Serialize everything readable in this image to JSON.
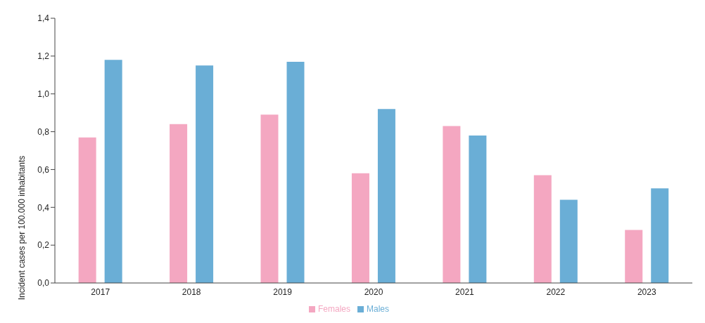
{
  "chart_data": {
    "type": "bar",
    "ylabel": "Incident cases per 100.000 inhabitants",
    "categories": [
      "2017",
      "2018",
      "2019",
      "2020",
      "2021",
      "2022",
      "2023"
    ],
    "series": [
      {
        "name": "Females",
        "color": "#f4a7c1",
        "values": [
          0.77,
          0.84,
          0.89,
          0.58,
          0.83,
          0.57,
          0.28
        ]
      },
      {
        "name": "Males",
        "color": "#6aaed6",
        "values": [
          1.18,
          1.15,
          1.17,
          0.92,
          0.78,
          0.44,
          0.5
        ]
      }
    ],
    "ylim": [
      0,
      1.4
    ],
    "yticks": [
      {
        "value": 0,
        "label": "0,0"
      },
      {
        "value": 0.2,
        "label": "0,2"
      },
      {
        "value": 0.4,
        "label": "0,4"
      },
      {
        "value": 0.6,
        "label": "0,6"
      },
      {
        "value": 0.8,
        "label": "0,8"
      },
      {
        "value": 1,
        "label": "1,0"
      },
      {
        "value": 1.2,
        "label": "1,2"
      },
      {
        "value": 1.4,
        "label": "1,4"
      }
    ],
    "grid": false,
    "legend": "bottom"
  }
}
